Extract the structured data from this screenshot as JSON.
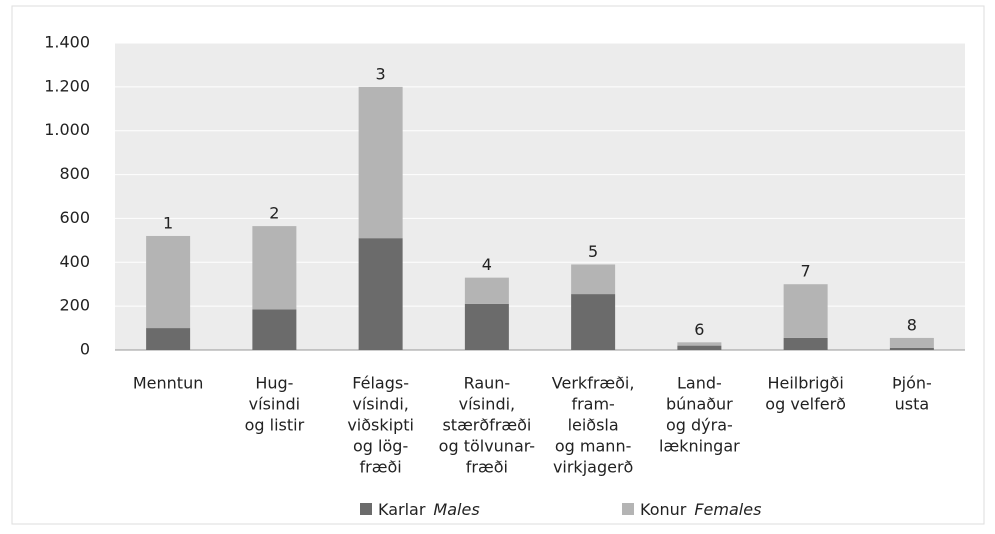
{
  "chart_data": {
    "type": "stacked_bar",
    "categories": [
      [
        "Menntun"
      ],
      [
        "Hug-",
        "vísindi",
        "og listir"
      ],
      [
        "Félags-",
        "vísindi,",
        "viðskipti",
        "og lög-",
        "fræði"
      ],
      [
        "Raun-",
        "vísindi,",
        "stærðfræði",
        "og tölvunar-",
        "fræði"
      ],
      [
        "Verkfræði,",
        "fram-",
        "leiðsla",
        "og mann-",
        "virkjagerð"
      ],
      [
        "Land-",
        "búnaður",
        "og dýra-",
        "lækningar"
      ],
      [
        "Heilbrigði",
        "og velferð"
      ],
      [
        "Þjón-",
        "usta"
      ]
    ],
    "bar_numbers": [
      "1",
      "2",
      "3",
      "4",
      "5",
      "6",
      "7",
      "8"
    ],
    "series": [
      {
        "name": "Karlar",
        "name_en": "Males",
        "color": "#6b6b6b",
        "values": [
          100,
          185,
          510,
          210,
          255,
          20,
          55,
          10
        ]
      },
      {
        "name": "Konur",
        "name_en": "Females",
        "color": "#b4b4b4",
        "values": [
          420,
          380,
          690,
          120,
          135,
          15,
          245,
          45
        ]
      }
    ],
    "ylim": [
      0,
      1400
    ],
    "yticks": [
      0,
      200,
      400,
      600,
      800,
      {
        "value": 1000,
        "label": "1.000"
      },
      {
        "value": 1200,
        "label": "1.200"
      },
      {
        "value": 1400,
        "label": "1.400"
      }
    ],
    "grid": true,
    "plot_background": "#ececec"
  }
}
